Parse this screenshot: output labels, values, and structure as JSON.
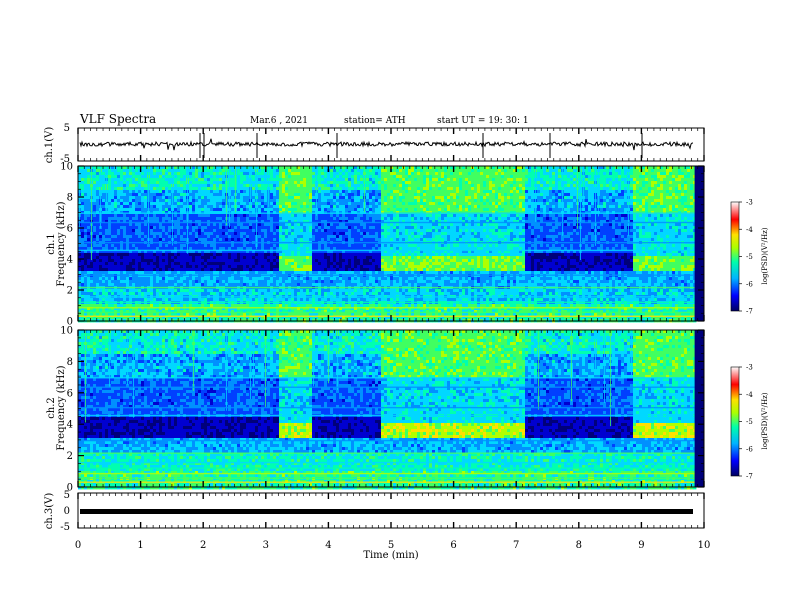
{
  "header": {
    "title": "VLF Spectra",
    "date": "Mar.6  , 2021",
    "station": "station= ATH",
    "start": "start  UT  =   19: 30: 1"
  },
  "colors": {
    "background": "#ffffff",
    "axis": "#000000",
    "colormap": [
      "#000060",
      "#0000ff",
      "#00b4ff",
      "#00ffaa",
      "#aaff00",
      "#ffe000",
      "#ff0000",
      "#ffffff"
    ]
  },
  "chart_data": [
    {
      "type": "line",
      "ylabel": "ch.1(V)",
      "ylim": [
        -5,
        5
      ],
      "yticks": [
        "5",
        "-5"
      ],
      "description_series": "waveform",
      "level": 0.2
    },
    {
      "type": "heatmap",
      "ylabel_line1": "ch.1",
      "ylabel_line2": "Frequency  (kHz)",
      "ylim": [
        0,
        10
      ],
      "yticks": [
        "0",
        "2",
        "4",
        "6",
        "8",
        "10"
      ],
      "quiet_bands": [
        [
          0,
          3.2
        ],
        [
          3.7,
          4.8
        ],
        [
          7.1,
          8.85
        ]
      ],
      "active_bands": [
        [
          3.2,
          3.7
        ],
        [
          4.8,
          7.1
        ],
        [
          8.85,
          9.85
        ]
      ],
      "colorbar": {
        "label": "log(PSD)(V²/Hz)",
        "range": [
          -7,
          -3
        ],
        "ticks": [
          "-3",
          "-4",
          "-5",
          "-6",
          "-7"
        ]
      }
    },
    {
      "type": "heatmap",
      "ylabel_line1": "ch.2",
      "ylabel_line2": "Frequency  (kHz)",
      "ylim": [
        0,
        10
      ],
      "yticks": [
        "0",
        "2",
        "4",
        "6",
        "8",
        "10"
      ],
      "quiet_bands": [
        [
          0,
          3.2
        ],
        [
          3.7,
          4.8
        ],
        [
          7.1,
          8.85
        ]
      ],
      "active_bands": [
        [
          3.2,
          3.7
        ],
        [
          4.8,
          7.1
        ],
        [
          8.85,
          9.85
        ]
      ],
      "colorbar": {
        "label": "log(PSD)(V²/Hz)",
        "range": [
          -7,
          -3
        ],
        "ticks": [
          "-3",
          "-4",
          "-5",
          "-6",
          "-7"
        ]
      }
    },
    {
      "type": "line",
      "ylabel": "ch.3(V)",
      "ylim": [
        -5,
        5
      ],
      "yticks": [
        "5",
        "0",
        "-5"
      ],
      "level": -0.2
    }
  ],
  "xaxis": {
    "xlabel": "Time  (min)",
    "xlim": [
      0,
      10
    ],
    "xticks": [
      "0",
      "1",
      "2",
      "3",
      "4",
      "5",
      "6",
      "7",
      "8",
      "9",
      "10"
    ],
    "data_end": 9.85
  }
}
